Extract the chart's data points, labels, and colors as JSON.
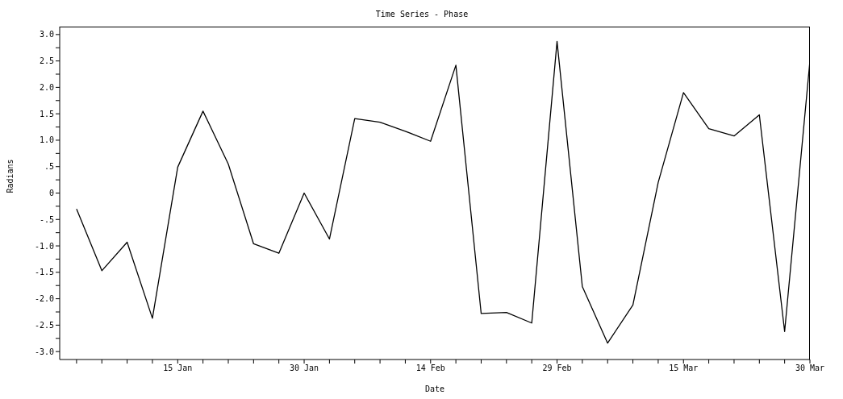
{
  "chart_data": {
    "type": "line",
    "title": "Time Series - Phase",
    "xlabel": "Date",
    "ylabel": "Radians",
    "x": [
      "--01-03",
      "--01-06",
      "--01-09",
      "--01-12",
      "--01-15",
      "--01-18",
      "--01-21",
      "--01-24",
      "--01-27",
      "--01-30",
      "--02-02",
      "--02-05",
      "--02-08",
      "--02-11",
      "--02-14",
      "--02-17",
      "--02-20",
      "--02-23",
      "--02-26",
      "--02-29",
      "--03-03",
      "--03-06",
      "--03-09",
      "--03-12",
      "--03-15",
      "--03-18",
      "--03-21",
      "--03-24",
      "--03-27",
      "--03-30"
    ],
    "series": [
      {
        "color": "#000000",
        "values": [
          -0.3,
          -1.47,
          -0.93,
          -2.37,
          0.49,
          1.55,
          0.55,
          -0.96,
          -1.14,
          0.0,
          -0.87,
          1.41,
          1.34,
          1.17,
          0.98,
          2.42,
          -2.28,
          -2.26,
          -2.46,
          2.87,
          -1.77,
          -2.84,
          -2.12,
          0.2,
          1.9,
          1.22,
          1.08,
          1.48,
          -2.62,
          2.5
        ]
      }
    ],
    "xlim": [
      "--01-01",
      "--03-30"
    ],
    "xticks": [
      {
        "value": "--01-03",
        "label": null
      },
      {
        "value": "--01-06",
        "label": null
      },
      {
        "value": "--01-09",
        "label": null
      },
      {
        "value": "--01-12",
        "label": null
      },
      {
        "value": "--01-15",
        "label": "15 Jan"
      },
      {
        "value": "--01-18",
        "label": null
      },
      {
        "value": "--01-21",
        "label": null
      },
      {
        "value": "--01-24",
        "label": null
      },
      {
        "value": "--01-27",
        "label": null
      },
      {
        "value": "--01-30",
        "label": "30 Jan"
      },
      {
        "value": "--02-02",
        "label": null
      },
      {
        "value": "--02-05",
        "label": null
      },
      {
        "value": "--02-08",
        "label": null
      },
      {
        "value": "--02-11",
        "label": null
      },
      {
        "value": "--02-14",
        "label": "14 Feb"
      },
      {
        "value": "--02-17",
        "label": null
      },
      {
        "value": "--02-20",
        "label": null
      },
      {
        "value": "--02-23",
        "label": null
      },
      {
        "value": "--02-26",
        "label": null
      },
      {
        "value": "--02-29",
        "label": "29 Feb"
      },
      {
        "value": "--03-03",
        "label": null
      },
      {
        "value": "--03-06",
        "label": null
      },
      {
        "value": "--03-09",
        "label": null
      },
      {
        "value": "--03-12",
        "label": null
      },
      {
        "value": "--03-15",
        "label": "15 Mar"
      },
      {
        "value": "--03-18",
        "label": null
      },
      {
        "value": "--03-21",
        "label": null
      },
      {
        "value": "--03-24",
        "label": null
      },
      {
        "value": "--03-27",
        "label": null
      },
      {
        "value": "--03-30",
        "label": "30 Mar"
      }
    ],
    "ylim": [
      -3.15,
      3.15
    ],
    "yticks": [
      {
        "value": 3,
        "label": "3.0"
      },
      {
        "value": 2.75,
        "label": null
      },
      {
        "value": 2.5,
        "label": "2.5"
      },
      {
        "value": 2.25,
        "label": null
      },
      {
        "value": 2,
        "label": "2.0"
      },
      {
        "value": 1.75,
        "label": null
      },
      {
        "value": 1.5,
        "label": "1.5"
      },
      {
        "value": 1.25,
        "label": null
      },
      {
        "value": 1,
        "label": "1.0"
      },
      {
        "value": 0.75,
        "label": null
      },
      {
        "value": 0.5,
        "label": ".5"
      },
      {
        "value": 0.25,
        "label": null
      },
      {
        "value": 0,
        "label": "0"
      },
      {
        "value": -0.25,
        "label": null
      },
      {
        "value": -0.5,
        "label": "-.5"
      },
      {
        "value": -0.75,
        "label": null
      },
      {
        "value": -1,
        "label": "-1.0"
      },
      {
        "value": -1.25,
        "label": null
      },
      {
        "value": -1.5,
        "label": "-1.5"
      },
      {
        "value": -1.75,
        "label": null
      },
      {
        "value": -2,
        "label": "-2.0"
      },
      {
        "value": -2.25,
        "label": null
      },
      {
        "value": -2.5,
        "label": "-2.5"
      },
      {
        "value": -2.75,
        "label": null
      },
      {
        "value": -3,
        "label": "-3.0"
      }
    ],
    "grid": false,
    "legend": false,
    "marker": "none",
    "line_style": "solid"
  }
}
